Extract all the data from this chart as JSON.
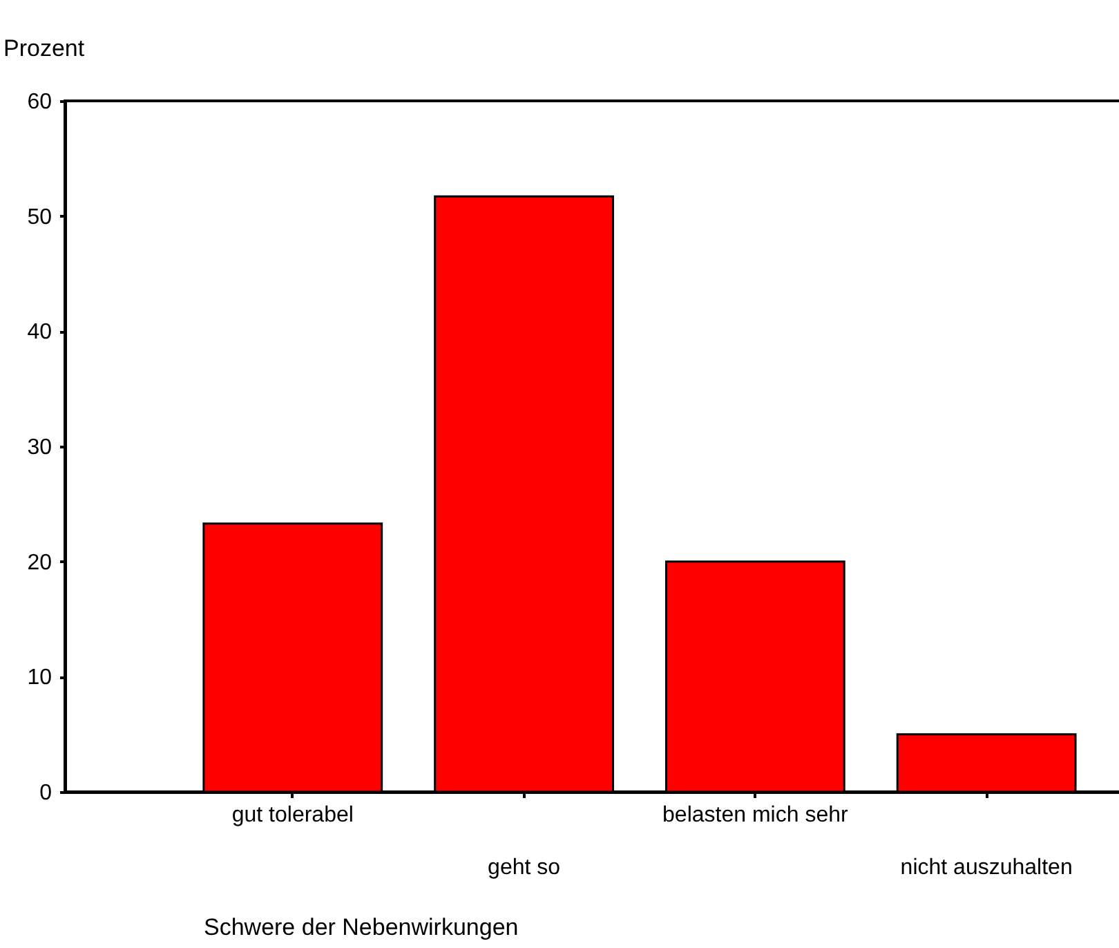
{
  "chart_data": {
    "type": "bar",
    "ylabel": "Prozent",
    "xlabel": "Schwere der Nebenwirkungen",
    "categories": [
      "gut tolerabel",
      "geht so",
      "belasten mich sehr",
      "nicht auszuhalten"
    ],
    "values": [
      23.3,
      51.7,
      20.0,
      5.0
    ],
    "color": "#ff0000",
    "ylim": [
      0,
      60
    ],
    "yticks": [
      0,
      10,
      20,
      30,
      40,
      50,
      60
    ],
    "grid": false
  }
}
